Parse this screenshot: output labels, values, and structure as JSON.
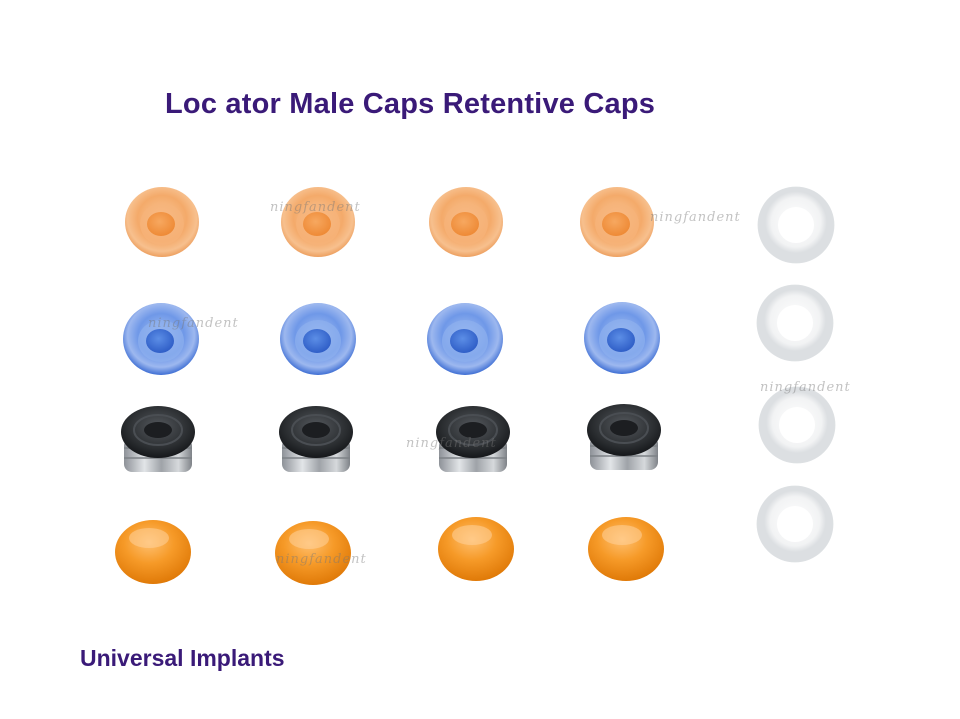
{
  "title": "Loc ator Male Caps Retentive Caps",
  "subtitle": "Universal Implants",
  "watermarks": [
    "ningfandent",
    "ningfandent",
    "ningfandent",
    "ningfandent",
    "ningfandent",
    "ningfandent"
  ],
  "colors": {
    "text": "#3a1a78",
    "orange_clear_cap": "#f2a05a",
    "blue_clear_cap": "#3a6fd8",
    "black_cap": "#2a2d30",
    "metal_housing": "#b8bcc2",
    "orange_solid_cap": "#f08a10",
    "white_ring": "#f4f5f6"
  }
}
